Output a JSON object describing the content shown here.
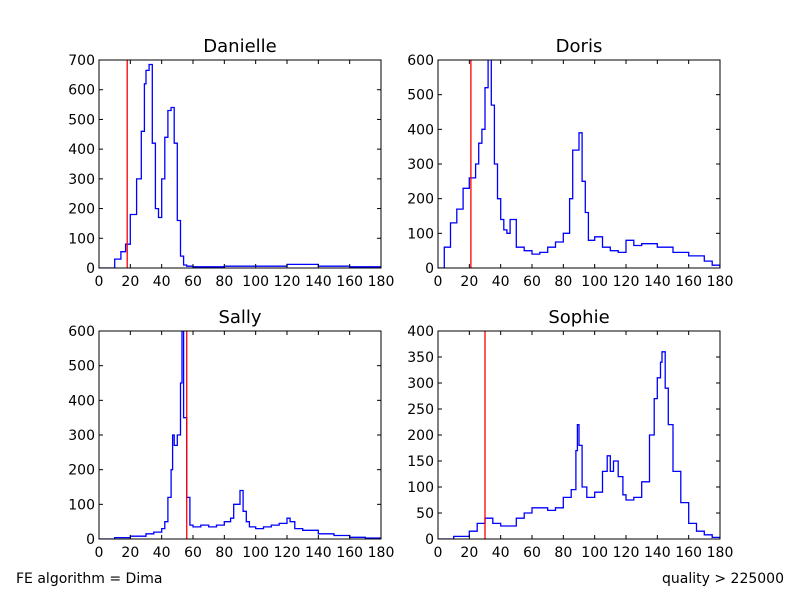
{
  "footer": {
    "left": "FE algorithm = Dima",
    "right": "quality > 225000"
  },
  "chart_data": [
    {
      "type": "histogram",
      "title": "Danielle",
      "xlim": [
        0,
        180
      ],
      "ylim": [
        0,
        700
      ],
      "xticks": [
        0,
        20,
        40,
        60,
        80,
        100,
        120,
        140,
        160,
        180
      ],
      "yticks": [
        0,
        100,
        200,
        300,
        400,
        500,
        600,
        700
      ],
      "series_color": "#0000ff",
      "marker_color": "#ff0000",
      "marker_x": 18,
      "x": [
        0,
        10,
        14,
        17,
        20,
        24,
        27,
        29,
        30,
        32,
        34,
        36,
        38,
        40,
        42,
        44,
        46,
        48,
        50,
        52,
        54,
        56,
        60,
        80,
        100,
        120,
        140,
        160,
        180
      ],
      "y": [
        0,
        30,
        55,
        80,
        180,
        300,
        460,
        620,
        665,
        685,
        420,
        200,
        170,
        300,
        440,
        530,
        540,
        420,
        160,
        40,
        10,
        6,
        4,
        6,
        6,
        12,
        6,
        4,
        0
      ]
    },
    {
      "type": "histogram",
      "title": "Doris",
      "xlim": [
        0,
        180
      ],
      "ylim": [
        0,
        600
      ],
      "xticks": [
        0,
        20,
        40,
        60,
        80,
        100,
        120,
        140,
        160,
        180
      ],
      "yticks": [
        0,
        100,
        200,
        300,
        400,
        500,
        600
      ],
      "series_color": "#0000ff",
      "marker_color": "#ff0000",
      "marker_x": 21,
      "x": [
        0,
        4,
        8,
        12,
        16,
        20,
        24,
        26,
        28,
        30,
        32,
        34,
        36,
        38,
        40,
        42,
        44,
        46,
        50,
        55,
        60,
        65,
        70,
        75,
        80,
        84,
        86,
        88,
        90,
        92,
        94,
        96,
        100,
        105,
        110,
        115,
        120,
        125,
        130,
        140,
        150,
        160,
        170,
        175,
        180
      ],
      "y": [
        0,
        60,
        130,
        170,
        230,
        260,
        300,
        360,
        400,
        520,
        610,
        470,
        300,
        200,
        140,
        110,
        100,
        140,
        60,
        50,
        40,
        45,
        60,
        75,
        100,
        200,
        340,
        340,
        390,
        250,
        160,
        80,
        90,
        60,
        50,
        45,
        80,
        65,
        70,
        60,
        45,
        35,
        20,
        8,
        0
      ]
    },
    {
      "type": "histogram",
      "title": "Sally",
      "xlim": [
        0,
        180
      ],
      "ylim": [
        0,
        600
      ],
      "xticks": [
        0,
        20,
        40,
        60,
        80,
        100,
        120,
        140,
        160,
        180
      ],
      "yticks": [
        0,
        100,
        200,
        300,
        400,
        500,
        600
      ],
      "series_color": "#0000ff",
      "marker_color": "#ff0000",
      "marker_x": 56,
      "x": [
        0,
        10,
        20,
        30,
        35,
        40,
        42,
        44,
        46,
        47,
        48,
        50,
        52,
        53,
        54,
        56,
        58,
        60,
        65,
        70,
        75,
        80,
        84,
        86,
        88,
        90,
        92,
        94,
        96,
        100,
        105,
        110,
        115,
        120,
        122,
        125,
        130,
        140,
        150,
        160,
        170,
        180
      ],
      "y": [
        0,
        4,
        8,
        15,
        20,
        30,
        50,
        120,
        200,
        300,
        270,
        300,
        450,
        600,
        350,
        120,
        40,
        35,
        40,
        35,
        40,
        50,
        60,
        100,
        100,
        140,
        80,
        50,
        35,
        30,
        35,
        40,
        45,
        60,
        50,
        30,
        25,
        15,
        10,
        5,
        3,
        0
      ]
    },
    {
      "type": "histogram",
      "title": "Sophie",
      "xlim": [
        0,
        180
      ],
      "ylim": [
        0,
        400
      ],
      "xticks": [
        0,
        20,
        40,
        60,
        80,
        100,
        120,
        140,
        160,
        180
      ],
      "yticks": [
        0,
        50,
        100,
        150,
        200,
        250,
        300,
        350,
        400
      ],
      "series_color": "#0000ff",
      "marker_color": "#ff0000",
      "marker_x": 30,
      "x": [
        0,
        10,
        20,
        25,
        30,
        35,
        40,
        45,
        50,
        55,
        60,
        65,
        70,
        75,
        80,
        85,
        88,
        89,
        90,
        92,
        95,
        100,
        105,
        108,
        110,
        112,
        115,
        118,
        120,
        125,
        130,
        135,
        138,
        140,
        142,
        143,
        145,
        147,
        150,
        155,
        160,
        165,
        170,
        175,
        180
      ],
      "y": [
        0,
        5,
        15,
        30,
        40,
        30,
        25,
        25,
        40,
        50,
        60,
        60,
        55,
        60,
        80,
        95,
        170,
        220,
        180,
        100,
        80,
        90,
        130,
        160,
        130,
        150,
        120,
        85,
        75,
        80,
        110,
        200,
        270,
        310,
        340,
        360,
        290,
        220,
        130,
        70,
        30,
        15,
        8,
        3,
        0
      ]
    }
  ]
}
